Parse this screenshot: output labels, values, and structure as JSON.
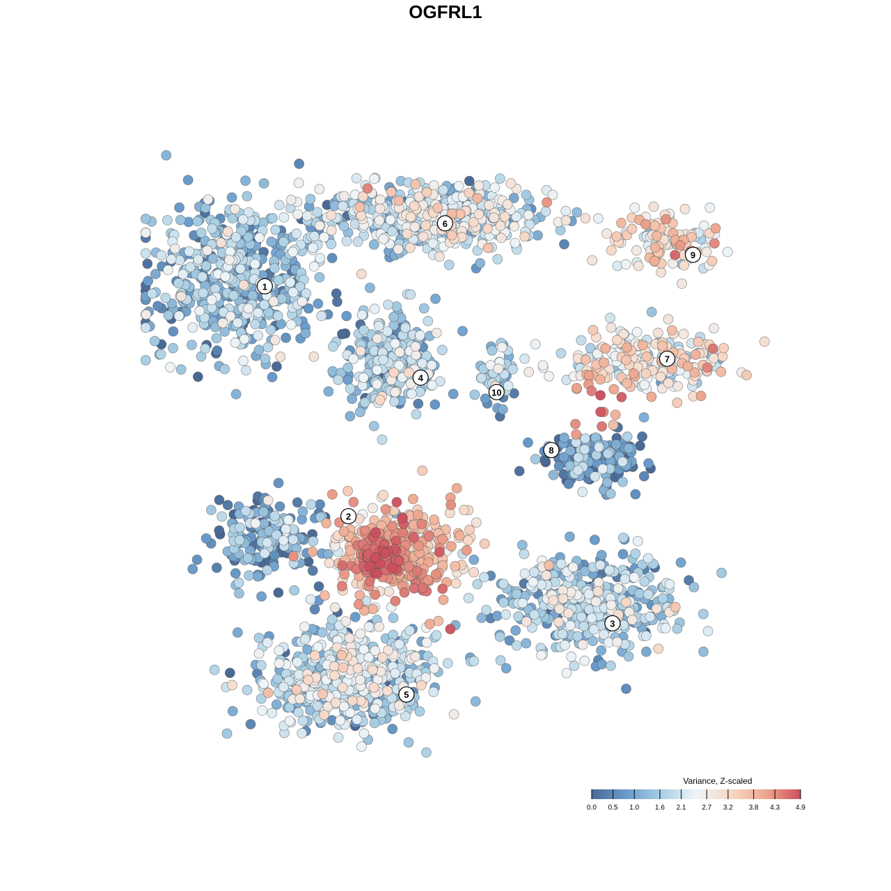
{
  "chart_data": {
    "type": "scatter",
    "title": "OGFRL1",
    "xlabel": "",
    "ylabel": "",
    "grid": false,
    "legend_placement": "bottom-right",
    "colorbar": {
      "title": "Variance, Z-scaled",
      "ticks": [
        0.0,
        0.5,
        1.0,
        1.6,
        2.1,
        2.7,
        3.2,
        3.8,
        4.3,
        4.9
      ],
      "tick_labels": [
        "0.0",
        "0.5",
        "1.0",
        "1.6",
        "2.1",
        "2.7",
        "3.2",
        "3.8",
        "4.3",
        "4.9"
      ],
      "range": [
        0.0,
        4.9
      ],
      "colors": [
        "#4a6a96",
        "#6a9ccb",
        "#a9cfe4",
        "#eef4f8",
        "#f7d8c6",
        "#eea88f",
        "#cc4f5e"
      ]
    },
    "clusters": [
      {
        "label": "1",
        "x": 0.15,
        "y": 0.76,
        "mean": 1.3,
        "spread": [
          0.13,
          0.12
        ],
        "n": 520
      },
      {
        "label": "6",
        "x": 0.46,
        "y": 0.86,
        "mean": 2.0,
        "spread": [
          0.16,
          0.05
        ],
        "n": 520
      },
      {
        "label": "9",
        "x": 0.82,
        "y": 0.82,
        "mean": 3.0,
        "spread": [
          0.08,
          0.04
        ],
        "n": 110
      },
      {
        "label": "7",
        "x": 0.79,
        "y": 0.63,
        "mean": 2.7,
        "spread": [
          0.12,
          0.05
        ],
        "n": 230
      },
      {
        "label": "4",
        "x": 0.39,
        "y": 0.63,
        "mean": 1.6,
        "spread": [
          0.07,
          0.07
        ],
        "n": 260
      },
      {
        "label": "10",
        "x": 0.555,
        "y": 0.61,
        "mean": 1.4,
        "spread": [
          0.03,
          0.04
        ],
        "n": 60
      },
      {
        "label": "8",
        "x": 0.71,
        "y": 0.48,
        "mean": 0.6,
        "spread": [
          0.07,
          0.05
        ],
        "n": 170
      },
      {
        "label": "2",
        "x": 0.2,
        "y": 0.35,
        "mean": 0.8,
        "spread": [
          0.08,
          0.06
        ],
        "n": 180
      },
      {
        "label": "3",
        "x": 0.69,
        "y": 0.25,
        "mean": 1.6,
        "spread": [
          0.13,
          0.07
        ],
        "n": 420
      },
      {
        "label": "5",
        "x": 0.32,
        "y": 0.13,
        "mean": 1.8,
        "spread": [
          0.12,
          0.08
        ],
        "n": 520
      },
      {
        "label": "",
        "x": 0.4,
        "y": 0.33,
        "mean": 3.3,
        "spread": [
          0.1,
          0.07
        ],
        "n": 360
      }
    ],
    "hot_spots": [
      {
        "x": 0.7,
        "y": 0.56,
        "value": 4.9
      },
      {
        "x": 0.37,
        "y": 0.32,
        "value": 4.9
      },
      {
        "x": 0.44,
        "y": 0.26,
        "value": 4.8
      }
    ],
    "label_positions": [
      {
        "label": "1",
        "x": 0.195,
        "y": 0.75
      },
      {
        "label": "6",
        "x": 0.475,
        "y": 0.85
      },
      {
        "label": "9",
        "x": 0.86,
        "y": 0.8
      },
      {
        "label": "7",
        "x": 0.82,
        "y": 0.635
      },
      {
        "label": "4",
        "x": 0.437,
        "y": 0.605
      },
      {
        "label": "10",
        "x": 0.555,
        "y": 0.582
      },
      {
        "label": "8",
        "x": 0.64,
        "y": 0.49
      },
      {
        "label": "2",
        "x": 0.325,
        "y": 0.385
      },
      {
        "label": "3",
        "x": 0.735,
        "y": 0.215
      },
      {
        "label": "5",
        "x": 0.415,
        "y": 0.102
      }
    ]
  }
}
